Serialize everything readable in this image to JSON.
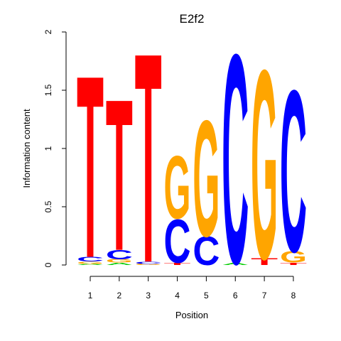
{
  "chart_data": {
    "type": "sequence-logo",
    "title": "E2f2",
    "xlabel": "Position",
    "ylabel": "Information content",
    "ylim": [
      0,
      2
    ],
    "yticks": [
      "0",
      "0.5",
      "1",
      "1.5",
      "2"
    ],
    "positions": [
      "1",
      "2",
      "3",
      "4",
      "5",
      "6",
      "7",
      "8"
    ],
    "colors": {
      "A": "#00cc00",
      "C": "#0000ff",
      "G": "#ffa500",
      "T": "#ff0000"
    },
    "stacks": [
      [
        {
          "letter": "A",
          "height": 0.01
        },
        {
          "letter": "G",
          "height": 0.02
        },
        {
          "letter": "C",
          "height": 0.04
        },
        {
          "letter": "T",
          "height": 1.6
        }
      ],
      [
        {
          "letter": "A",
          "height": 0.02
        },
        {
          "letter": "G",
          "height": 0.03
        },
        {
          "letter": "C",
          "height": 0.08
        },
        {
          "letter": "T",
          "height": 1.33
        }
      ],
      [
        {
          "letter": "G",
          "height": 0.01
        },
        {
          "letter": "C",
          "height": 0.02
        },
        {
          "letter": "T",
          "height": 1.84
        }
      ],
      [
        {
          "letter": "T",
          "height": 0.02
        },
        {
          "letter": "C",
          "height": 0.38
        },
        {
          "letter": "G",
          "height": 0.55
        }
      ],
      [
        {
          "letter": "C",
          "height": 0.25
        },
        {
          "letter": "G",
          "height": 1.02
        }
      ],
      [
        {
          "letter": "A",
          "height": 0.02
        },
        {
          "letter": "C",
          "height": 1.84
        }
      ],
      [
        {
          "letter": "T",
          "height": 0.06
        },
        {
          "letter": "G",
          "height": 1.66
        }
      ],
      [
        {
          "letter": "T",
          "height": 0.02
        },
        {
          "letter": "G",
          "height": 0.1
        },
        {
          "letter": "C",
          "height": 1.42
        }
      ]
    ]
  }
}
